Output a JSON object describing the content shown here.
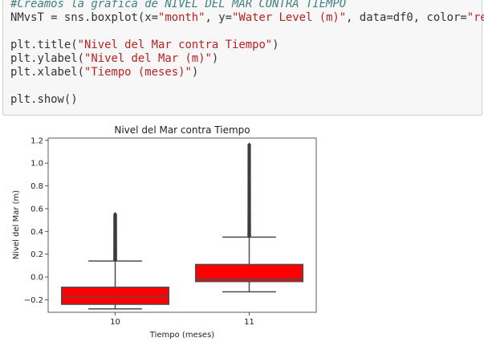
{
  "code": {
    "comment": "#Creamos la gráfica de NIVEL DEL MAR CONTRA TIEMPO",
    "line2": {
      "a": "NMvsT = sns.boxplot(x=",
      "s1": "\"month\"",
      "b": ", y=",
      "s2": "\"Water Level (m)\"",
      "c": ", data=df0, color=",
      "s3": "\"red\"",
      "d": ")"
    },
    "line4": {
      "a": "plt.title(",
      "s": "\"Nivel del Mar contra Tiempo\"",
      "b": ")"
    },
    "line5": {
      "a": "plt.ylabel(",
      "s": "\"Nivel del Mar (m)\"",
      "b": ")"
    },
    "line6": {
      "a": "plt.xlabel(",
      "s": "\"Tiempo (meses)\"",
      "b": ")"
    },
    "line8": "plt.show()"
  },
  "chart_data": {
    "type": "box",
    "title": "Nivel del Mar contra Tiempo",
    "xlabel": "Tiempo (meses)",
    "ylabel": "Nivel del Mar (m)",
    "categories": [
      "10",
      "11"
    ],
    "ylim": [
      -0.31,
      1.22
    ],
    "yticks": [
      -0.2,
      0.0,
      0.2,
      0.4,
      0.6,
      0.8,
      1.0,
      1.2
    ],
    "yticklabels": [
      "−0.2",
      "0.0",
      "0.2",
      "0.4",
      "0.6",
      "0.8",
      "1.0",
      "1.2"
    ],
    "box_color": "#ff0000",
    "line_color": "#4d4d4d",
    "boxes": [
      {
        "category": "10",
        "whisker_low": -0.28,
        "q1": -0.24,
        "median": -0.17,
        "q3": -0.09,
        "whisker_high": 0.14,
        "outlier_range": [
          0.15,
          0.55
        ]
      },
      {
        "category": "11",
        "whisker_low": -0.13,
        "q1": -0.04,
        "median": -0.02,
        "q3": 0.11,
        "whisker_high": 0.35,
        "outlier_range": [
          0.36,
          1.16
        ]
      }
    ]
  }
}
